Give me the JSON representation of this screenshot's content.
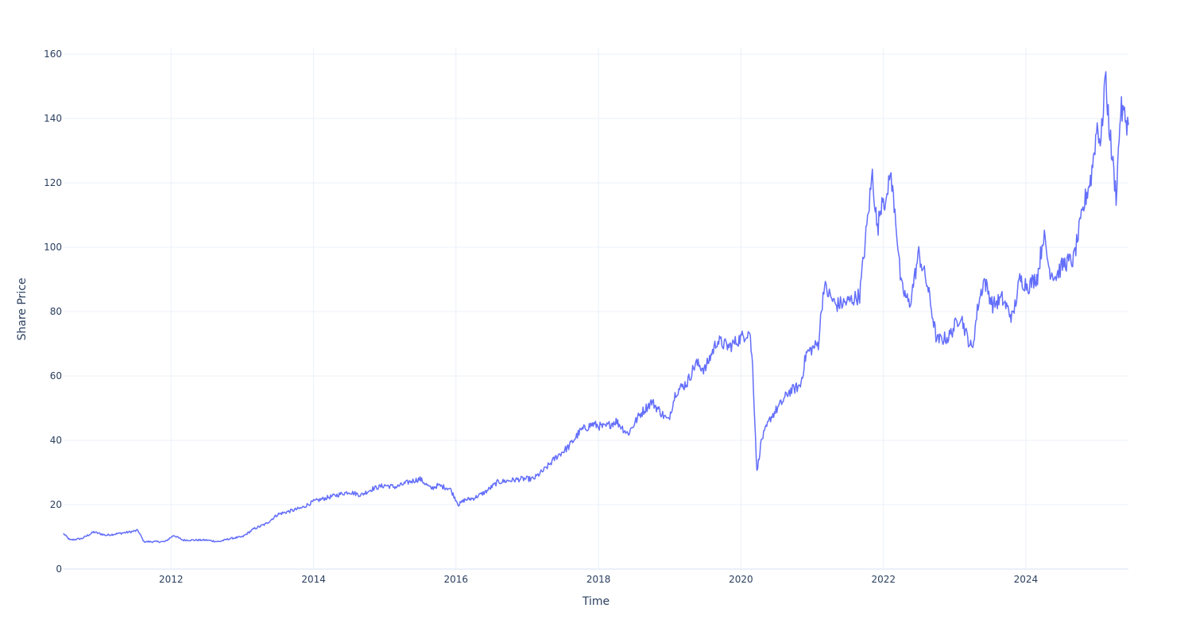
{
  "chart_data": {
    "type": "line",
    "title": "",
    "xlabel": "Time",
    "ylabel": "Share Price",
    "xlim": [
      "2010-06-29",
      "2025-06-10"
    ],
    "ylim": [
      0,
      162
    ],
    "x_ticks": [
      "2012",
      "2014",
      "2016",
      "2018",
      "2020",
      "2022",
      "2024"
    ],
    "y_ticks": [
      "0",
      "20",
      "40",
      "60",
      "80",
      "100",
      "120",
      "140",
      "160"
    ],
    "grid": true,
    "legend": "none",
    "colors": {
      "line": "#636efa",
      "grid": "#ebf0f8",
      "text": "#2a3f5f",
      "zeroline": "#ebf0f8"
    },
    "series": [
      {
        "x": [
          "2010-06-29",
          "2010-08-01",
          "2010-10-01",
          "2010-12-01",
          "2011-02-01",
          "2011-04-01",
          "2011-06-01",
          "2011-07-15",
          "2011-08-15",
          "2011-10-01",
          "2011-12-01",
          "2012-01-15",
          "2012-03-01",
          "2012-05-01",
          "2012-07-01",
          "2012-09-01",
          "2012-11-01",
          "2013-01-01",
          "2013-03-01",
          "2013-05-01",
          "2013-07-01",
          "2013-09-01",
          "2013-11-01",
          "2014-01-01",
          "2014-03-01",
          "2014-05-01",
          "2014-07-01",
          "2014-09-01",
          "2014-11-01",
          "2015-01-01",
          "2015-03-01",
          "2015-05-01",
          "2015-07-01",
          "2015-08-25",
          "2015-10-01",
          "2015-12-01",
          "2016-01-15",
          "2016-02-15",
          "2016-04-01",
          "2016-06-01",
          "2016-08-01",
          "2016-10-01",
          "2016-12-01",
          "2017-02-01",
          "2017-04-01",
          "2017-06-01",
          "2017-08-01",
          "2017-10-01",
          "2017-12-01",
          "2018-02-01",
          "2018-04-01",
          "2018-06-01",
          "2018-08-01",
          "2018-10-01",
          "2018-12-24",
          "2019-02-01",
          "2019-04-01",
          "2019-05-15",
          "2019-07-01",
          "2019-09-01",
          "2019-11-01",
          "2019-12-15",
          "2020-02-15",
          "2020-03-01",
          "2020-03-23",
          "2020-04-15",
          "2020-06-01",
          "2020-08-01",
          "2020-09-01",
          "2020-11-01",
          "2020-12-01",
          "2021-02-01",
          "2021-03-01",
          "2021-05-01",
          "2021-07-01",
          "2021-09-01",
          "2021-11-05",
          "2021-12-01",
          "2021-12-28",
          "2022-01-15",
          "2022-02-01",
          "2022-03-01",
          "2022-04-01",
          "2022-05-15",
          "2022-07-01",
          "2022-08-15",
          "2022-10-01",
          "2022-12-01",
          "2023-02-01",
          "2023-03-01",
          "2023-04-01",
          "2023-05-01",
          "2023-06-01",
          "2023-07-15",
          "2023-09-01",
          "2023-10-25",
          "2023-12-01",
          "2024-01-15",
          "2024-03-01",
          "2024-04-01",
          "2024-05-01",
          "2024-06-01",
          "2024-07-15",
          "2024-09-01",
          "2024-11-01",
          "2024-12-01",
          "2025-01-01",
          "2025-01-20",
          "2025-02-10",
          "2025-03-15",
          "2025-04-08",
          "2025-05-01",
          "2025-06-10"
        ],
        "y": [
          11,
          9,
          9.5,
          11.5,
          10.5,
          11,
          11.5,
          12,
          8.5,
          8.5,
          8.5,
          10.5,
          9,
          9,
          9,
          8.5,
          9.5,
          10,
          12.5,
          14,
          17,
          18,
          19,
          21,
          22,
          23,
          24,
          23,
          25,
          26,
          25.5,
          27,
          28,
          25,
          26,
          25,
          20,
          21.5,
          22,
          24,
          27,
          27.5,
          28,
          28,
          31,
          35,
          38,
          43,
          45,
          44,
          46,
          42,
          48,
          52,
          46,
          55,
          58,
          64,
          62,
          71,
          69,
          71,
          74,
          63,
          30,
          40,
          47,
          52,
          55,
          57,
          67,
          70,
          88,
          82,
          83,
          85,
          123,
          105,
          117,
          112,
          124,
          112,
          88,
          82,
          98,
          88,
          71,
          72,
          79,
          73,
          68,
          82,
          90,
          82,
          84,
          78,
          90,
          88,
          91,
          104,
          93,
          91,
          95,
          96,
          115,
          122,
          138,
          132,
          153,
          130,
          116,
          143,
          138
        ]
      }
    ]
  }
}
